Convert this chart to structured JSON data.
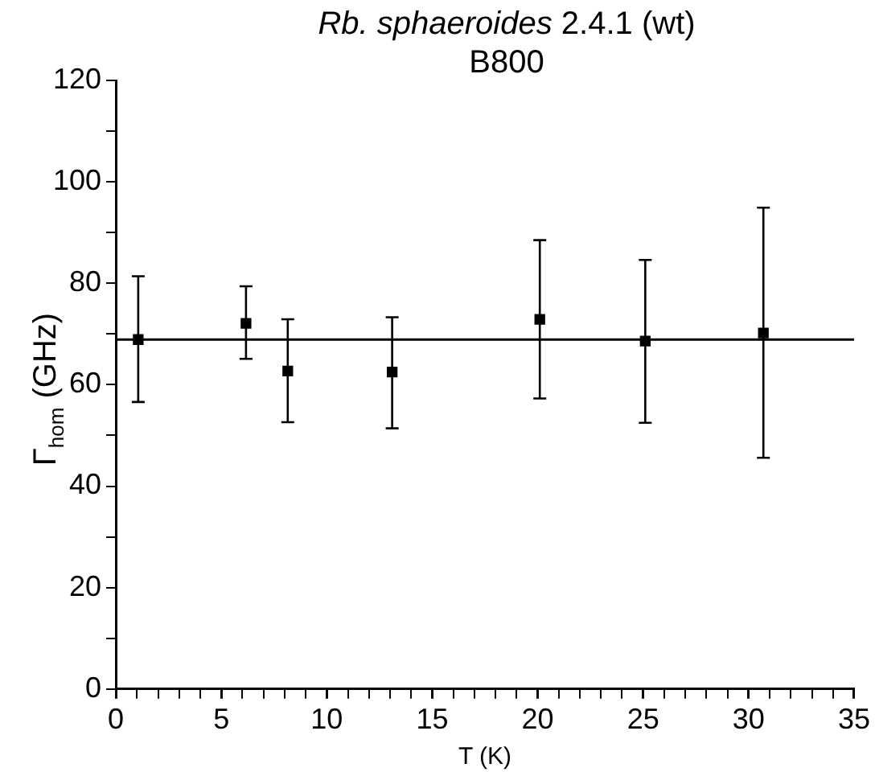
{
  "chart_data": {
    "type": "scatter",
    "title": "Rb. sphaeroides 2.4.1 (wt)",
    "subtitle": "B800",
    "xlabel": "T (K)",
    "ylabel": "Γ$_{hom}$ (GHz)",
    "series": [
      {
        "color": "#000000",
        "marker": "square",
        "x": [
          1.06,
          6.17,
          8.15,
          13.1,
          20.1,
          25.1,
          30.7
        ],
        "values": [
          68.9,
          72.1,
          62.7,
          62.5,
          72.9,
          68.6,
          70.2
        ],
        "errors": [
          [
            56.6,
            81.4
          ],
          [
            65.1,
            79.4
          ],
          [
            52.6,
            72.9
          ],
          [
            51.4,
            73.3
          ],
          [
            57.3,
            88.5
          ],
          [
            52.5,
            84.6
          ],
          [
            45.6,
            94.9
          ]
        ]
      },
      {
        "type": "line",
        "color": "#000000",
        "marker": "none",
        "line_style": "solid",
        "x": [
          0,
          35
        ],
        "values": [
          68.9,
          68.9
        ]
      }
    ],
    "xlim": [
      0,
      35
    ],
    "ylim": [
      0,
      120
    ],
    "xticks": [
      0,
      {
        "value": 1,
        "label": null
      },
      {
        "value": 2,
        "label": null
      },
      {
        "value": 3,
        "label": null
      },
      {
        "value": 4,
        "label": null
      },
      5,
      {
        "value": 6,
        "label": null
      },
      {
        "value": 7,
        "label": null
      },
      {
        "value": 8,
        "label": null
      },
      {
        "value": 9,
        "label": null
      },
      10,
      {
        "value": 11,
        "label": null
      },
      {
        "value": 12,
        "label": null
      },
      {
        "value": 13,
        "label": null
      },
      {
        "value": 14,
        "label": null
      },
      15,
      {
        "value": 16,
        "label": null
      },
      {
        "value": 17,
        "label": null
      },
      {
        "value": 18,
        "label": null
      },
      {
        "value": 19,
        "label": null
      },
      20,
      {
        "value": 21,
        "label": null
      },
      {
        "value": 22,
        "label": null
      },
      {
        "value": 23,
        "label": null
      },
      {
        "value": 24,
        "label": null
      },
      25,
      {
        "value": 26,
        "label": null
      },
      {
        "value": 27,
        "label": null
      },
      {
        "value": 28,
        "label": null
      },
      {
        "value": 29,
        "label": null
      },
      30,
      {
        "value": 31,
        "label": null
      },
      {
        "value": 32,
        "label": null
      },
      {
        "value": 33,
        "label": null
      },
      {
        "value": 34,
        "label": null
      },
      35
    ],
    "yticks": [
      0,
      {
        "value": 10,
        "label": null
      },
      20,
      {
        "value": 30,
        "label": null
      },
      40,
      {
        "value": 50,
        "label": null
      },
      60,
      {
        "value": 70,
        "label": null
      },
      80,
      {
        "value": 90,
        "label": null
      },
      100,
      {
        "value": 110,
        "label": null
      },
      120
    ],
    "grid": false,
    "legend": false
  }
}
